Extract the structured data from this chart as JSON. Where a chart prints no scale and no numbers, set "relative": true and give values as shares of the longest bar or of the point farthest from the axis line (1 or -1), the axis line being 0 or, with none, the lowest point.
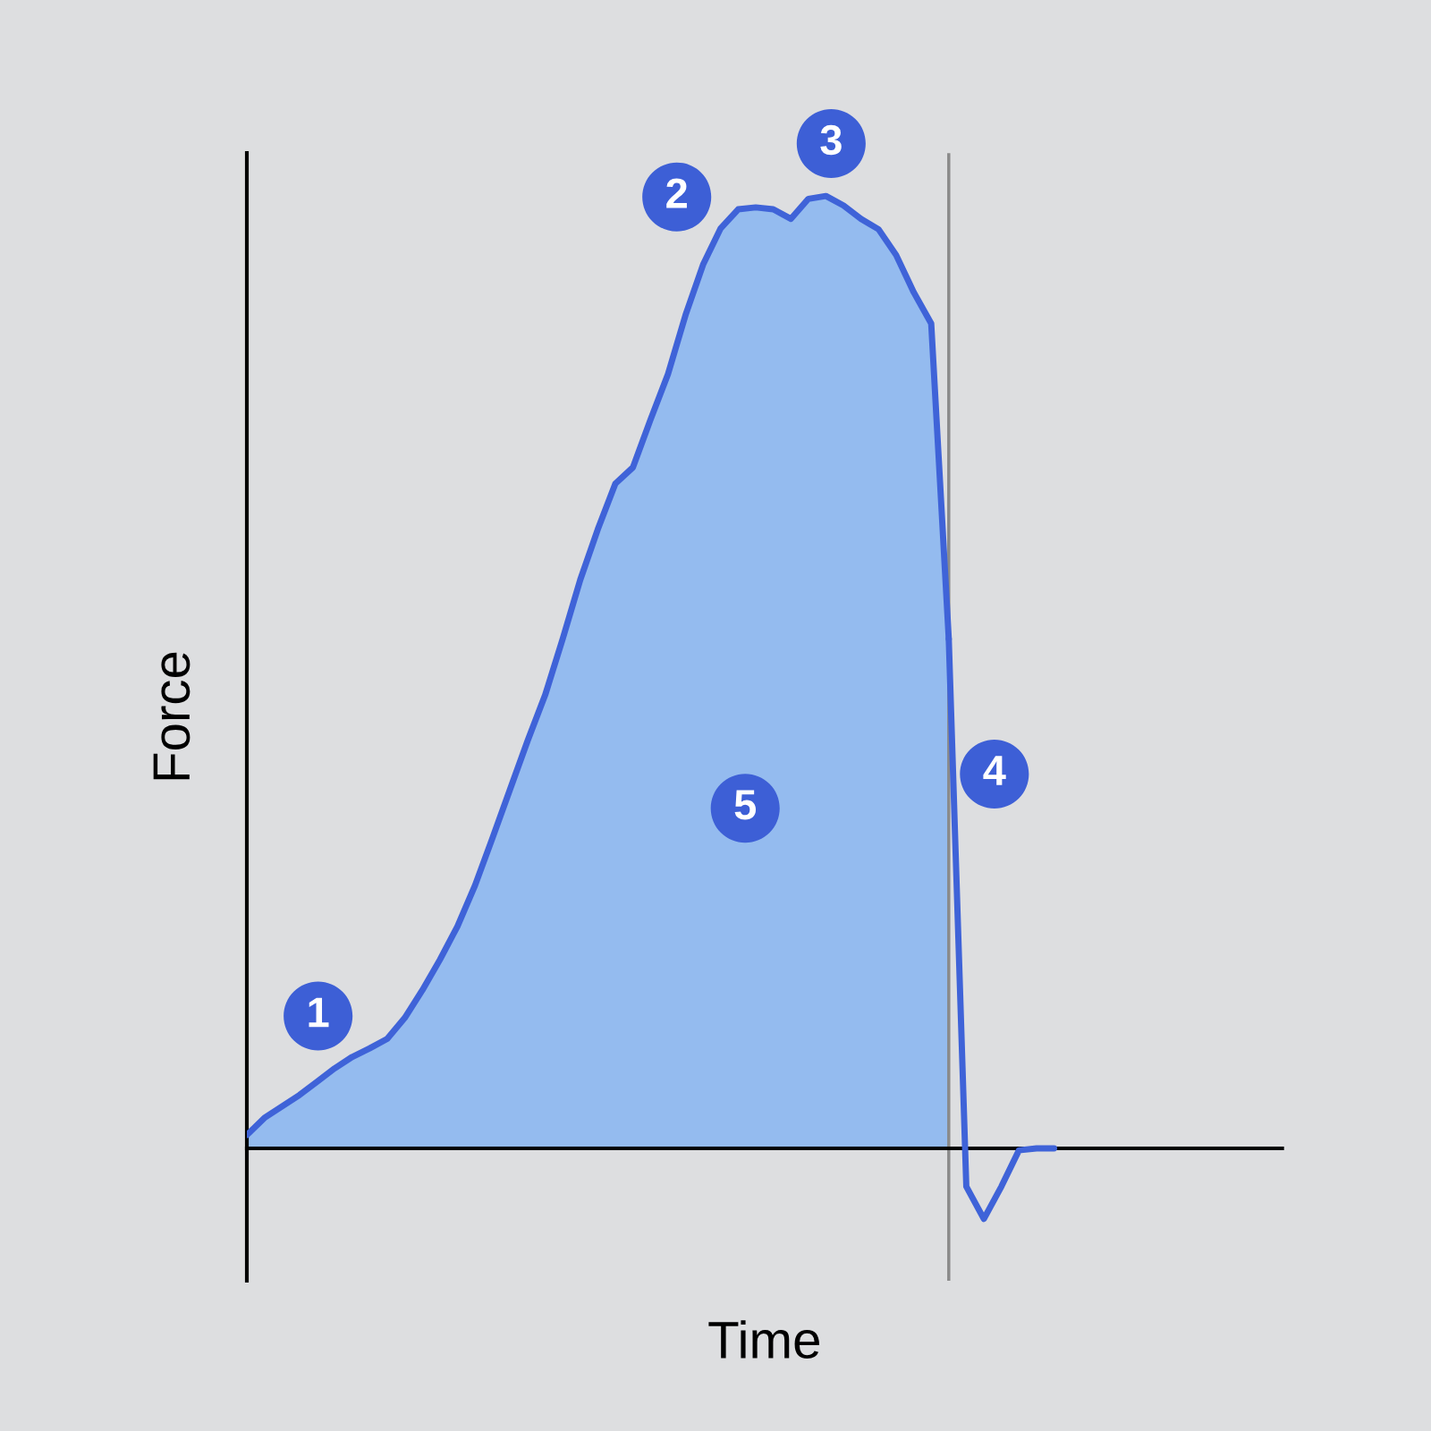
{
  "chart_data": {
    "type": "area",
    "relative": true,
    "xlabel": "Time",
    "ylabel": "Force",
    "categories": [
      null,
      null,
      null,
      null,
      null,
      null,
      null,
      null,
      null,
      null,
      null,
      null,
      null,
      null,
      null,
      null,
      null,
      null,
      null,
      null,
      null,
      null,
      null,
      null,
      null,
      null,
      null,
      null,
      null,
      null,
      null,
      null,
      null,
      null,
      null,
      null,
      null,
      null,
      null,
      null,
      null,
      null,
      null,
      null,
      null,
      null,
      null,
      null,
      null,
      null,
      null,
      null,
      null,
      null,
      null,
      null,
      null,
      null,
      null,
      null
    ],
    "series": [
      {
        "color": "#3f63d8",
        "values": [
          0.014,
          0.032,
          0.044,
          0.056,
          0.07,
          0.084,
          0.096,
          0.105,
          0.115,
          0.137,
          0.166,
          0.198,
          0.233,
          0.276,
          0.326,
          0.377,
          0.428,
          0.476,
          0.535,
          0.597,
          0.65,
          0.698,
          0.715,
          0.765,
          0.813,
          0.875,
          0.928,
          0.966,
          0.986,
          0.988,
          0.986,
          0.976,
          0.997,
          1.0,
          0.99,
          0.976,
          0.965,
          0.938,
          0.899,
          0.866,
          0.535,
          null,
          null,
          null,
          null,
          null,
          null,
          null,
          null,
          null,
          null,
          null,
          null,
          null,
          null,
          null,
          null,
          null,
          null,
          null
        ]
      },
      {
        "type": "line",
        "color": "#3f63d8",
        "values": [
          null,
          null,
          null,
          null,
          null,
          null,
          null,
          null,
          null,
          null,
          null,
          null,
          null,
          null,
          null,
          null,
          null,
          null,
          null,
          null,
          null,
          null,
          null,
          null,
          null,
          null,
          null,
          null,
          null,
          null,
          null,
          null,
          null,
          null,
          null,
          null,
          null,
          null,
          null,
          null,
          0.535,
          -0.04,
          -0.074,
          -0.04,
          -0.002,
          0,
          0,
          null,
          null,
          null,
          null,
          null,
          null,
          null,
          null,
          null,
          null,
          null,
          null,
          null
        ]
      }
    ],
    "annotations": [
      "1",
      "2",
      "3",
      "4",
      "5"
    ]
  }
}
